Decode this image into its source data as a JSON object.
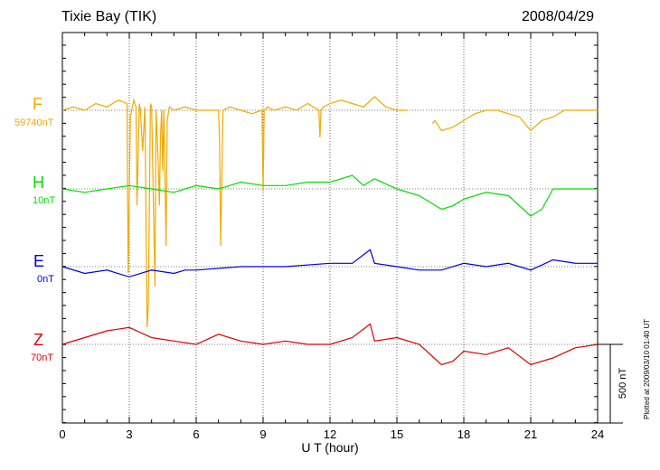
{
  "header": {
    "station": "Tixie Bay (TIK)",
    "date": "2008/04/29"
  },
  "plotted_note": "Plotted at 2009/03/10 01:40 UT",
  "chart_data": {
    "type": "line",
    "xlabel": "U T (hour)",
    "xlim": [
      0,
      24
    ],
    "xticks": [
      "0",
      "3",
      "6",
      "9",
      "12",
      "15",
      "18",
      "21",
      "24"
    ],
    "scale_bar_label": "500 nT",
    "series": [
      {
        "name": "F",
        "baseline": "59740nT",
        "color": "#f2a900",
        "x": [
          0,
          0.5,
          1,
          1.5,
          2,
          2.5,
          2.9,
          2.95,
          3.05,
          3.2,
          3.3,
          3.35,
          3.45,
          3.5,
          3.6,
          3.7,
          3.8,
          3.85,
          3.95,
          4,
          4.15,
          4.2,
          4.3,
          4.35,
          4.4,
          4.45,
          4.5,
          4.55,
          4.65,
          4.7,
          4.8,
          5,
          5.5,
          6,
          6.5,
          7,
          7.05,
          7.1,
          7.2,
          7.5,
          8,
          8.5,
          8.95,
          9,
          9.05,
          9.2,
          9.5,
          10,
          10.5,
          11,
          11.5,
          11.55,
          11.6,
          11.7,
          12,
          12.5,
          13,
          13.5,
          14,
          14.5,
          15,
          15.5
        ],
        "values": [
          0,
          5,
          0,
          10,
          5,
          15,
          10,
          -240,
          -10,
          15,
          5,
          -140,
          10,
          0,
          -60,
          5,
          -320,
          -290,
          10,
          5,
          -260,
          0,
          -80,
          -140,
          -40,
          0,
          -90,
          0,
          -200,
          -15,
          5,
          0,
          5,
          0,
          0,
          0,
          -50,
          -200,
          0,
          5,
          0,
          -5,
          0,
          -120,
          0,
          5,
          0,
          5,
          0,
          10,
          0,
          -40,
          0,
          5,
          10,
          15,
          10,
          5,
          20,
          5,
          0,
          0
        ],
        "x2": [
          16.6,
          16.7,
          17,
          17.5,
          18,
          18.5,
          19,
          19.5,
          20,
          20.5,
          21,
          21.5,
          22,
          22.5,
          23,
          23.5,
          24
        ],
        "values2": [
          -20,
          -15,
          -30,
          -25,
          -15,
          -5,
          0,
          0,
          -5,
          -10,
          -30,
          -15,
          -10,
          0,
          0,
          0,
          0
        ]
      },
      {
        "name": "H",
        "baseline": "10nT",
        "color": "#00dd00",
        "x": [
          0,
          1,
          2,
          3,
          4,
          5,
          6,
          7,
          8,
          9,
          10,
          11,
          12,
          13,
          13.5,
          14,
          15,
          16,
          17,
          17.5,
          18,
          19,
          20,
          21,
          21.5,
          22,
          23,
          24
        ],
        "values": [
          0,
          -5,
          0,
          5,
          0,
          -5,
          5,
          0,
          10,
          5,
          5,
          10,
          10,
          20,
          5,
          15,
          0,
          -10,
          -30,
          -25,
          -15,
          -5,
          -10,
          -40,
          -30,
          0,
          0,
          0
        ]
      },
      {
        "name": "E",
        "baseline": "0nT",
        "color": "#0000dd",
        "x": [
          0,
          1,
          2,
          3,
          4,
          5,
          5.5,
          6,
          8,
          10,
          12,
          13,
          13.8,
          14,
          15,
          16,
          17,
          18,
          19,
          20,
          21,
          22,
          23,
          24
        ],
        "values": [
          0,
          -10,
          -5,
          -15,
          -5,
          -10,
          -5,
          -5,
          0,
          0,
          5,
          5,
          25,
          5,
          0,
          -5,
          -5,
          5,
          0,
          5,
          -5,
          10,
          5,
          5
        ]
      },
      {
        "name": "Z",
        "baseline": "70nT",
        "color": "#dd0000",
        "x": [
          0,
          1,
          2,
          3,
          4,
          5,
          6,
          7,
          8,
          9,
          10,
          11,
          12,
          13,
          13.8,
          14,
          15,
          16,
          17,
          17.5,
          18,
          19,
          20,
          21,
          22,
          23,
          24
        ],
        "values": [
          0,
          10,
          20,
          25,
          10,
          5,
          0,
          15,
          5,
          0,
          5,
          0,
          0,
          10,
          30,
          5,
          10,
          0,
          -30,
          -25,
          -10,
          -15,
          -5,
          -30,
          -20,
          -5,
          0
        ]
      }
    ]
  }
}
